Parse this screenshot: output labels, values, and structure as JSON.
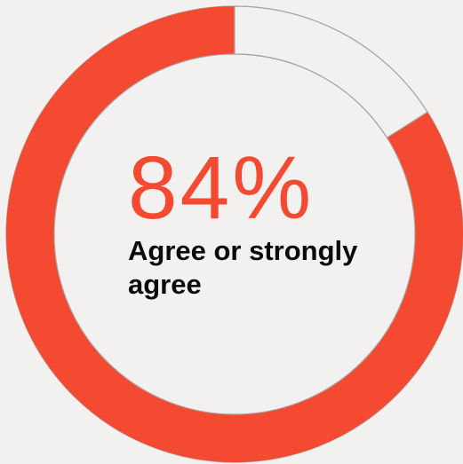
{
  "chart_data": {
    "type": "pie",
    "title": "",
    "slices": [
      {
        "label": "Agree or strongly agree",
        "value": 84,
        "color": "#f44a32"
      },
      {
        "label": "",
        "value": 16,
        "color": "#f2f1ef"
      }
    ],
    "center_value": "84%",
    "center_caption": "Agree or strongly agree"
  },
  "colors": {
    "accent": "#f44a32",
    "background": "#f2f1ef",
    "text": "#0b0b0b"
  }
}
